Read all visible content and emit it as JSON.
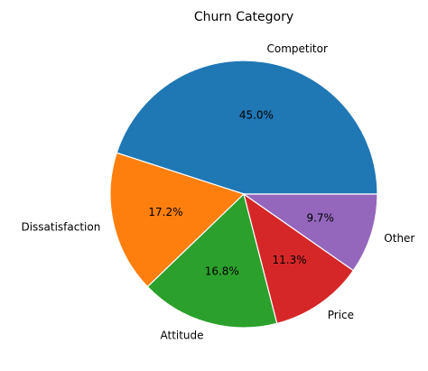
{
  "chart_data": {
    "type": "pie",
    "title": "Churn Category",
    "categories": [
      "Competitor",
      "Dissatisfaction",
      "Attitude",
      "Price",
      "Other"
    ],
    "values": [
      45.0,
      17.2,
      16.8,
      11.3,
      9.7
    ],
    "value_labels": [
      "45.0%",
      "17.2%",
      "16.8%",
      "11.3%",
      "9.7%"
    ],
    "colors": [
      "#1f77b4",
      "#ff7f0e",
      "#2ca02c",
      "#d62728",
      "#9467bd"
    ],
    "start_angle_deg": 0,
    "direction": "counterclockwise",
    "legend": "none"
  }
}
